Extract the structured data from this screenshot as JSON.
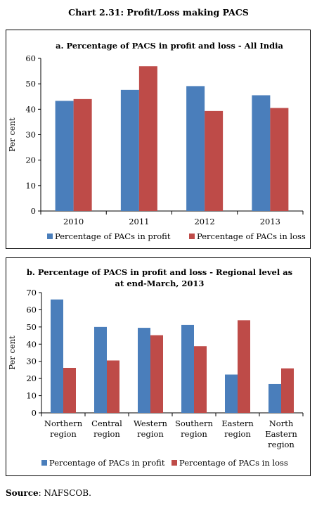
{
  "page_title": "Chart 2.31: Profit/Loss making PACS",
  "source": {
    "label": "Source",
    "text": "NAFSCOB."
  },
  "colors": {
    "profit": "#4a7ebb",
    "loss": "#be4b48"
  },
  "chart_data": [
    {
      "type": "bar",
      "title": "a. Percentage of PACS in profit and loss - All India",
      "ylabel": "Per cent",
      "xlabel": "",
      "ylim": [
        0,
        60
      ],
      "yticks": [
        0,
        10,
        20,
        30,
        40,
        50,
        60
      ],
      "grid": false,
      "legend_position": "bottom",
      "categories": [
        [
          "2010"
        ],
        [
          "2011"
        ],
        [
          "2012"
        ],
        [
          "2013"
        ]
      ],
      "series": [
        {
          "name": "Percentage of PACs in profit",
          "values": [
            43.3,
            47.6,
            49.1,
            45.5
          ]
        },
        {
          "name": "Percentage of PACs in loss",
          "values": [
            44.0,
            56.9,
            39.3,
            40.5
          ]
        }
      ]
    },
    {
      "type": "bar",
      "title_lines": [
        "b. Percentage of PACS in profit and loss - Regional level as",
        "at end-March, 2013"
      ],
      "ylabel": "Per cent",
      "xlabel": "",
      "ylim": [
        0,
        70
      ],
      "yticks": [
        0,
        10,
        20,
        30,
        40,
        50,
        60,
        70
      ],
      "grid": false,
      "legend_position": "bottom",
      "categories": [
        [
          "Northern",
          "region"
        ],
        [
          "Central",
          "region"
        ],
        [
          "Western",
          "region"
        ],
        [
          "Southern",
          "region"
        ],
        [
          "Eastern",
          "region"
        ],
        [
          "North",
          "Eastern",
          "region"
        ]
      ],
      "series": [
        {
          "name": "Percentage of PACs in profit",
          "values": [
            66.0,
            50.0,
            49.5,
            51.2,
            22.3,
            16.8
          ]
        },
        {
          "name": "Percentage of PACs in loss",
          "values": [
            26.2,
            30.5,
            45.2,
            38.8,
            53.9,
            25.9
          ]
        }
      ]
    }
  ]
}
